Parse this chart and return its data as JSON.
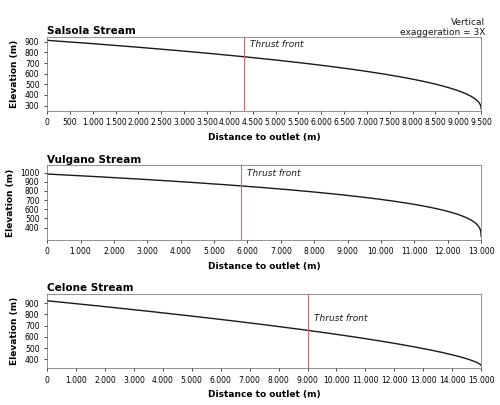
{
  "streams": [
    {
      "title": "Salsola Stream",
      "xlabel": "Distance to outlet (m)",
      "ylabel": "Elevation (m)",
      "xlim": [
        0,
        9500
      ],
      "ylim": [
        250,
        950
      ],
      "x_max": 9500,
      "start_elev": 915,
      "end_elev": 270,
      "thrust_x": 4300,
      "thrust_label": "Thrust front",
      "xtick_step": 500,
      "yticks": [
        300,
        400,
        500,
        600,
        700,
        800,
        900
      ],
      "curve_power": 2.2
    },
    {
      "title": "Vulgano Stream",
      "xlabel": "Distance to outlet (m)",
      "ylabel": "Elevation (m)",
      "xlim": [
        0,
        13000
      ],
      "ylim": [
        270,
        1080
      ],
      "x_max": 13000,
      "start_elev": 985,
      "end_elev": 305,
      "thrust_x": 5800,
      "thrust_label": "Thrust front",
      "xtick_step": 1000,
      "yticks": [
        400,
        500,
        600,
        700,
        800,
        900,
        1000
      ],
      "curve_power": 2.8
    },
    {
      "title": "Celone Stream",
      "xlabel": "Distance to outlet (m)",
      "ylabel": "Elevation (m)",
      "xlim": [
        0,
        15000
      ],
      "ylim": [
        320,
        980
      ],
      "x_max": 15000,
      "start_elev": 920,
      "end_elev": 345,
      "thrust_x": 9000,
      "thrust_label": "Thrust front",
      "xtick_step": 1000,
      "yticks": [
        400,
        500,
        600,
        700,
        800,
        900
      ],
      "curve_power": 1.5
    }
  ],
  "vertical_exaggeration_text": "Vertical\nexaggeration = 3X",
  "line_color": "#1a1a1a",
  "thrust_color": "#d9696e",
  "background_color": "#ffffff",
  "title_fontsize": 7.5,
  "label_fontsize": 6.5,
  "tick_fontsize": 5.5,
  "annotation_fontsize": 6.5
}
